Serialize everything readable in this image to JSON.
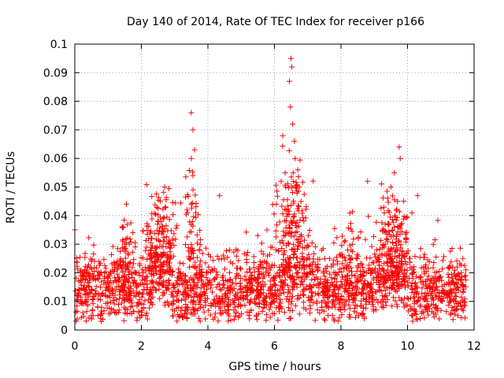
{
  "chart_data": {
    "type": "scatter",
    "title": "Day 140 of 2014, Rate Of TEC Index for receiver p166",
    "xlabel": "GPS time / hours",
    "ylabel": "ROTI / TECUs",
    "xlim": [
      0,
      12
    ],
    "ylim": [
      0,
      0.1
    ],
    "xticks": [
      "0",
      "2",
      "4",
      "6",
      "8",
      "10",
      "12"
    ],
    "yticks": [
      "0",
      "0.01",
      "0.02",
      "0.03",
      "0.04",
      "0.05",
      "0.06",
      "0.07",
      "0.08",
      "0.09",
      "0.1"
    ],
    "grid": true,
    "marker": "+",
    "color": "#ff0000",
    "series": [
      {
        "name": "ROTI",
        "note": "dense band ~0.005-0.03 across 0-11.8 h; notable peaks listed",
        "peaks": [
          {
            "x": 0.0,
            "y": 0.035
          },
          {
            "x": 1.55,
            "y": 0.044
          },
          {
            "x": 2.7,
            "y": 0.05
          },
          {
            "x": 3.5,
            "y": 0.076
          },
          {
            "x": 3.55,
            "y": 0.07
          },
          {
            "x": 3.6,
            "y": 0.063
          },
          {
            "x": 3.5,
            "y": 0.06
          },
          {
            "x": 3.55,
            "y": 0.054
          },
          {
            "x": 3.5,
            "y": 0.044
          },
          {
            "x": 4.35,
            "y": 0.047
          },
          {
            "x": 6.5,
            "y": 0.095
          },
          {
            "x": 6.52,
            "y": 0.092
          },
          {
            "x": 6.45,
            "y": 0.087
          },
          {
            "x": 6.48,
            "y": 0.078
          },
          {
            "x": 6.55,
            "y": 0.072
          },
          {
            "x": 6.6,
            "y": 0.066
          },
          {
            "x": 6.62,
            "y": 0.06
          },
          {
            "x": 6.7,
            "y": 0.056
          },
          {
            "x": 6.75,
            "y": 0.05
          },
          {
            "x": 6.8,
            "y": 0.045
          },
          {
            "x": 6.2,
            "y": 0.052
          },
          {
            "x": 8.8,
            "y": 0.052
          },
          {
            "x": 9.75,
            "y": 0.064
          },
          {
            "x": 9.78,
            "y": 0.06
          },
          {
            "x": 9.6,
            "y": 0.055
          },
          {
            "x": 9.5,
            "y": 0.05
          },
          {
            "x": 9.7,
            "y": 0.045
          },
          {
            "x": 10.3,
            "y": 0.047
          }
        ]
      }
    ]
  }
}
